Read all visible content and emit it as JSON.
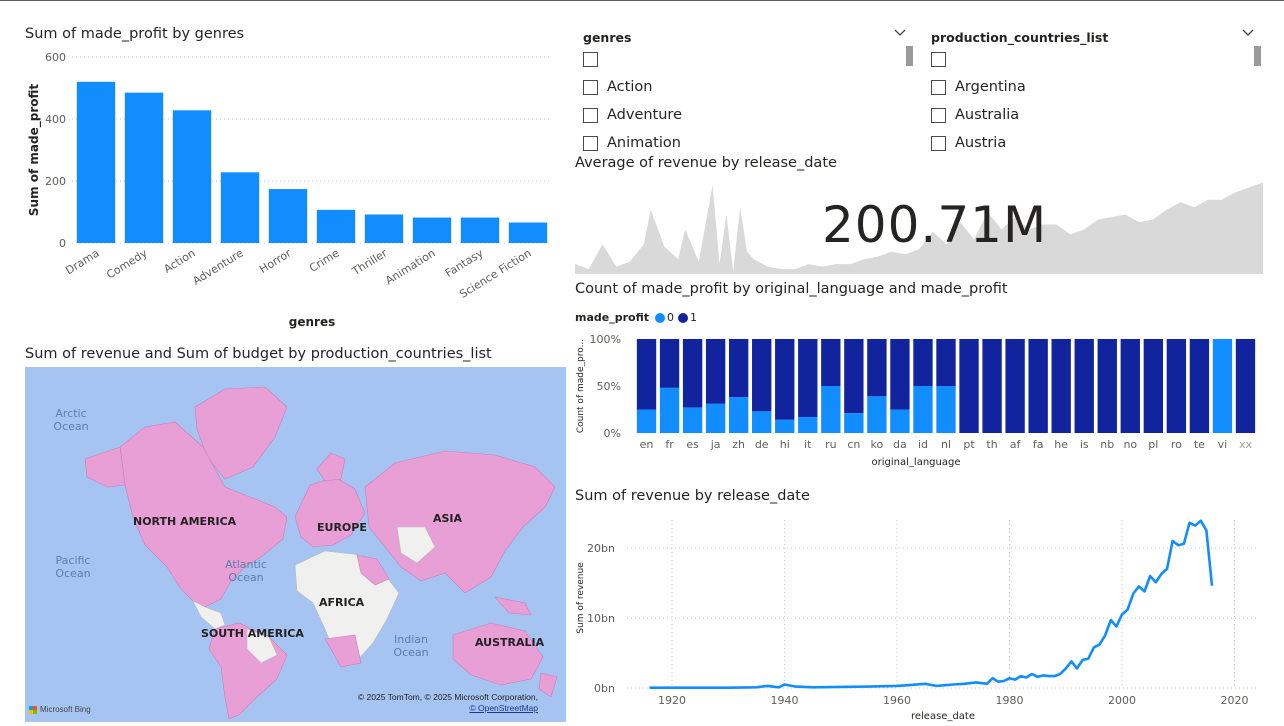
{
  "colors": {
    "bar_blue": "#118dff",
    "dark_blue": "#12239e",
    "light_blue": "#118dff",
    "area_grey": "#d9d9d9",
    "land_pink": "#e89fd6",
    "land_grey": "#f0f0ee",
    "ocean": "#a6c4f2"
  },
  "slicers": [
    {
      "header": "genres",
      "items": [
        "",
        "Action",
        "Adventure",
        "Animation"
      ]
    },
    {
      "header": "production_countries_list",
      "items": [
        "",
        "Argentina",
        "Australia",
        "Austria"
      ]
    }
  ],
  "kpi": {
    "title": "Average of revenue by release_date",
    "value": "200.71M"
  },
  "map": {
    "title": "Sum of revenue and Sum of budget by production_countries_list",
    "oceans": [
      "Arctic Ocean",
      "Pacific Ocean",
      "Atlantic Ocean",
      "Indian Ocean"
    ],
    "continents": [
      "NORTH AMERICA",
      "EUROPE",
      "ASIA",
      "AFRICA",
      "SOUTH AMERICA",
      "AUSTRALIA"
    ],
    "attribution": "© 2025 TomTom, © 2025 Microsoft Corporation,",
    "osm": "© OpenStreetMap",
    "bing": "Microsoft Bing"
  },
  "chart_data": [
    {
      "type": "bar",
      "title": "Sum of made_profit by genres",
      "xlabel": "genres",
      "ylabel": "Sum of made_profit",
      "categories": [
        "Drama",
        "Comedy",
        "Action",
        "Adventure",
        "Horror",
        "Crime",
        "Thriller",
        "Animation",
        "Fantasy",
        "Science Fiction"
      ],
      "values": [
        520,
        485,
        428,
        228,
        174,
        107,
        92,
        82,
        82,
        66
      ],
      "ylim": [
        0,
        600
      ],
      "yticks": [
        0,
        200,
        400,
        600
      ],
      "grid": true
    },
    {
      "type": "area",
      "title": "Average of revenue by release_date",
      "x": [
        1916,
        1918,
        1920,
        1922,
        1924,
        1926,
        1927,
        1929,
        1931,
        1932,
        1934,
        1936,
        1937,
        1938,
        1939,
        1940,
        1941,
        1942,
        1944,
        1946,
        1948,
        1950,
        1952,
        1954,
        1956,
        1958,
        1960,
        1962,
        1964,
        1966,
        1968,
        1970,
        1972,
        1974,
        1976,
        1978,
        1980,
        1982,
        1984,
        1986,
        1988,
        1990,
        1992,
        1994,
        1996,
        1998,
        2000,
        2002,
        2004,
        2006,
        2008,
        2010,
        2012,
        2014,
        2016
      ],
      "values": [
        40,
        20,
        120,
        30,
        50,
        120,
        260,
        110,
        60,
        180,
        50,
        360,
        40,
        240,
        10,
        270,
        90,
        60,
        30,
        20,
        20,
        40,
        30,
        40,
        40,
        60,
        70,
        90,
        80,
        100,
        170,
        120,
        210,
        140,
        250,
        180,
        230,
        180,
        200,
        200,
        160,
        180,
        220,
        230,
        240,
        210,
        220,
        260,
        290,
        270,
        300,
        300,
        330,
        350,
        370
      ],
      "ylim": [
        0,
        380
      ]
    },
    {
      "type": "bar",
      "stacked": "percent",
      "title": "Count of made_profit by original_language and made_profit",
      "legend_title": "made_profit",
      "xlabel": "original_language",
      "ylabel": "Count of made_pro...",
      "yticks": [
        "0%",
        "50%",
        "100%"
      ],
      "categories": [
        "en",
        "fr",
        "es",
        "ja",
        "zh",
        "de",
        "hi",
        "it",
        "ru",
        "cn",
        "ko",
        "da",
        "id",
        "nl",
        "pt",
        "th",
        "af",
        "fa",
        "he",
        "is",
        "nb",
        "no",
        "pl",
        "ro",
        "te",
        "vi",
        "xx"
      ],
      "series": [
        {
          "name": "0",
          "values": [
            25,
            48,
            27,
            31,
            38,
            23,
            14,
            17,
            50,
            21,
            39,
            25,
            50,
            50,
            0,
            0,
            0,
            0,
            0,
            0,
            0,
            0,
            0,
            0,
            0,
            100,
            0
          ]
        },
        {
          "name": "1",
          "values": [
            75,
            52,
            73,
            69,
            62,
            77,
            86,
            83,
            50,
            79,
            61,
            75,
            50,
            50,
            100,
            100,
            100,
            100,
            100,
            100,
            100,
            100,
            100,
            100,
            100,
            0,
            100
          ]
        }
      ],
      "legend_position": "top-left"
    },
    {
      "type": "line",
      "title": "Sum of revenue by release_date",
      "xlabel": "release_date",
      "ylabel": "Sum of revenue",
      "xticks": [
        1920,
        1940,
        1960,
        1980,
        2000,
        2020
      ],
      "yticks": [
        0,
        10,
        20
      ],
      "ytick_labels": [
        "0bn",
        "10bn",
        "20bn"
      ],
      "xlim": [
        1912,
        2024
      ],
      "ylim": [
        0,
        24
      ],
      "x": [
        1916,
        1925,
        1930,
        1935,
        1937,
        1939,
        1940,
        1942,
        1945,
        1950,
        1955,
        1960,
        1962,
        1965,
        1967,
        1970,
        1972,
        1974,
        1976,
        1977,
        1978,
        1979,
        1980,
        1981,
        1982,
        1983,
        1984,
        1985,
        1986,
        1987,
        1988,
        1989,
        1990,
        1991,
        1992,
        1993,
        1994,
        1995,
        1996,
        1997,
        1998,
        1999,
        2000,
        2001,
        2002,
        2003,
        2004,
        2005,
        2006,
        2007,
        2008,
        2009,
        2010,
        2011,
        2012,
        2013,
        2014,
        2015,
        2016
      ],
      "values": [
        0.05,
        0.05,
        0.05,
        0.1,
        0.3,
        0.1,
        0.5,
        0.2,
        0.1,
        0.15,
        0.2,
        0.3,
        0.4,
        0.6,
        0.3,
        0.5,
        0.6,
        0.8,
        0.6,
        1.4,
        0.9,
        1.0,
        1.4,
        1.2,
        1.7,
        1.5,
        2.0,
        1.6,
        1.8,
        1.7,
        1.7,
        2.0,
        2.8,
        3.8,
        2.8,
        4.0,
        4.2,
        5.8,
        6.2,
        7.5,
        9.7,
        8.8,
        10.5,
        11.2,
        13.5,
        14.5,
        13.8,
        16.0,
        15.1,
        16.3,
        17.0,
        21.0,
        20.4,
        20.6,
        23.6,
        23.2,
        23.9,
        22.5,
        14.6
      ],
      "grid": true
    }
  ]
}
